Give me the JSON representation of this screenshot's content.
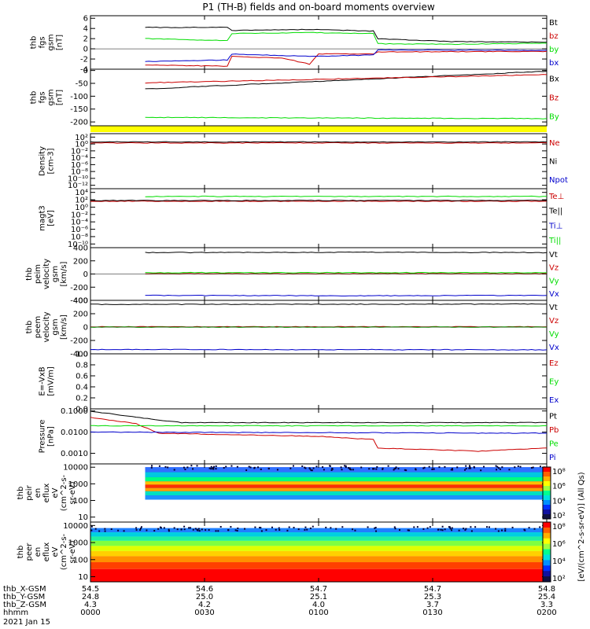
{
  "title": "P1  (TH-B) fields and on-board moments overview",
  "colors": {
    "black": "#000000",
    "red": "#cc0000",
    "green": "#00dd00",
    "blue": "#0000cc",
    "yellow": "#ffff00"
  },
  "chart_data": [
    {
      "type": "line",
      "id": "fgs_gsm",
      "ylabel": [
        "thb",
        "fgs",
        "gsm",
        "[nT]"
      ],
      "ylim": [
        -4,
        6.5
      ],
      "yticks": [
        -4,
        -2,
        0,
        2,
        4,
        6
      ],
      "series": [
        {
          "name": "Bt",
          "color": "black",
          "segments": [
            [
              0.12,
              4.2
            ],
            [
              0.3,
              4.2
            ],
            [
              0.31,
              3.6
            ],
            [
              0.48,
              3.8
            ],
            [
              0.62,
              3.5
            ],
            [
              0.63,
              2.0
            ],
            [
              0.8,
              1.4
            ],
            [
              1.0,
              1.3
            ]
          ]
        },
        {
          "name": "bz",
          "color": "red",
          "segments": [
            [
              0.12,
              -3.2
            ],
            [
              0.3,
              -3.4
            ],
            [
              0.31,
              -1.5
            ],
            [
              0.42,
              -1.8
            ],
            [
              0.48,
              -3.0
            ],
            [
              0.5,
              -1.0
            ],
            [
              0.62,
              -1.0
            ],
            [
              0.63,
              -0.6
            ],
            [
              1.0,
              -0.5
            ]
          ]
        },
        {
          "name": "by",
          "color": "green",
          "segments": [
            [
              0.12,
              2.0
            ],
            [
              0.3,
              1.6
            ],
            [
              0.31,
              3.0
            ],
            [
              0.48,
              3.2
            ],
            [
              0.62,
              3.0
            ],
            [
              0.63,
              1.0
            ],
            [
              0.8,
              0.9
            ],
            [
              1.0,
              1.1
            ]
          ]
        },
        {
          "name": "bx",
          "color": "blue",
          "segments": [
            [
              0.12,
              -2.5
            ],
            [
              0.3,
              -2.2
            ],
            [
              0.31,
              -1.0
            ],
            [
              0.48,
              -1.5
            ],
            [
              0.62,
              -1.2
            ],
            [
              0.63,
              -0.2
            ],
            [
              1.0,
              -0.3
            ]
          ]
        }
      ]
    },
    {
      "type": "line",
      "id": "fgs_gsm_2",
      "ylabel": [
        "thb",
        "fgs",
        "gsm",
        "[nT]"
      ],
      "ylim": [
        -215,
        5
      ],
      "yticks": [
        -200,
        -150,
        -100,
        -50,
        0
      ],
      "series": [
        {
          "name": "Bx",
          "color": "black",
          "segments": [
            [
              0.12,
              -72
            ],
            [
              1.0,
              -3
            ]
          ]
        },
        {
          "name": "Bz",
          "color": "red",
          "segments": [
            [
              0.12,
              -48
            ],
            [
              1.0,
              -16
            ]
          ]
        },
        {
          "name": "By",
          "color": "green",
          "segments": [
            [
              0.12,
              -182
            ],
            [
              0.6,
              -185
            ],
            [
              1.0,
              -187
            ]
          ]
        }
      ]
    },
    {
      "type": "line",
      "id": "density",
      "ylabel": [
        "Density",
        "[cm-3]"
      ],
      "ylim": [
        -13,
        3
      ],
      "log": true,
      "ytick_labels": [
        {
          "v": 2,
          "t": "10²"
        },
        {
          "v": 0,
          "t": "10⁰"
        },
        {
          "v": -2,
          "t": "10⁻²"
        },
        {
          "v": -4,
          "t": "10⁻⁴"
        },
        {
          "v": -6,
          "t": "10⁻⁶"
        },
        {
          "v": -8,
          "t": "10⁻⁸"
        },
        {
          "v": -10,
          "t": "10⁻¹⁰"
        },
        {
          "v": -12,
          "t": "10⁻¹²"
        }
      ],
      "series": [
        {
          "name": "Ne",
          "color": "red",
          "segments": [
            [
              0.0,
              0.3
            ],
            [
              1.0,
              0.3
            ]
          ]
        },
        {
          "name": "Ni",
          "color": "black",
          "segments": [
            [
              0.0,
              0.6
            ],
            [
              1.0,
              0.6
            ]
          ]
        },
        {
          "name": "Npot",
          "color": "blue",
          "segments": []
        }
      ]
    },
    {
      "type": "line",
      "id": "magt3",
      "ylabel": [
        "magt3",
        "[eV]"
      ],
      "ylim": [
        -11,
        5
      ],
      "log": true,
      "ytick_labels": [
        {
          "v": 4,
          "t": "10⁴"
        },
        {
          "v": 2,
          "t": "10²"
        },
        {
          "v": 0,
          "t": "10⁰"
        },
        {
          "v": -2,
          "t": "10⁻²"
        },
        {
          "v": -4,
          "t": "10⁻⁴"
        },
        {
          "v": -6,
          "t": "10⁻⁶"
        },
        {
          "v": -8,
          "t": "10⁻⁸"
        },
        {
          "v": -10,
          "t": "10⁻¹⁰"
        }
      ],
      "series": [
        {
          "name": "Te⊥",
          "color": "red",
          "segments": [
            [
              0.0,
              1.6
            ],
            [
              1.0,
              1.6
            ]
          ]
        },
        {
          "name": "Te||",
          "color": "black",
          "segments": [
            [
              0.0,
              1.8
            ],
            [
              1.0,
              1.8
            ]
          ]
        },
        {
          "name": "Ti⊥",
          "color": "blue",
          "segments": []
        },
        {
          "name": "Ti||",
          "color": "green",
          "segments": [
            [
              0.12,
              2.9
            ],
            [
              1.0,
              2.9
            ]
          ]
        }
      ]
    },
    {
      "type": "line",
      "id": "peim",
      "ylabel": [
        "thb",
        "peim",
        "velocity",
        "gsm",
        "[km/s]"
      ],
      "ylim": [
        -400,
        400
      ],
      "yticks": [
        -400,
        -200,
        0,
        200,
        400
      ],
      "series": [
        {
          "name": "Vt",
          "color": "black",
          "segments": [
            [
              0.12,
              325
            ],
            [
              0.6,
              330
            ],
            [
              1.0,
              325
            ]
          ]
        },
        {
          "name": "Vz",
          "color": "red",
          "segments": [
            [
              0.12,
              5
            ],
            [
              1.0,
              5
            ]
          ]
        },
        {
          "name": "Vy",
          "color": "green",
          "segments": [
            [
              0.12,
              20
            ],
            [
              1.0,
              20
            ]
          ]
        },
        {
          "name": "Vx",
          "color": "blue",
          "segments": [
            [
              0.12,
              -325
            ],
            [
              0.6,
              -330
            ],
            [
              1.0,
              -325
            ]
          ]
        }
      ]
    },
    {
      "type": "line",
      "id": "peem",
      "ylabel": [
        "thb",
        "peem",
        "velocity",
        "gsm",
        "[km/s]"
      ],
      "ylim": [
        -400,
        400
      ],
      "yticks": [
        -400,
        -200,
        0,
        200,
        400
      ],
      "series": [
        {
          "name": "Vt",
          "color": "black",
          "segments": [
            [
              0.0,
              340
            ],
            [
              0.2,
              340
            ],
            [
              1.0,
              345
            ]
          ]
        },
        {
          "name": "Vz",
          "color": "red",
          "segments": [
            [
              0.0,
              5
            ],
            [
              1.0,
              5
            ]
          ]
        },
        {
          "name": "Vy",
          "color": "green",
          "segments": [
            [
              0.0,
              0
            ],
            [
              1.0,
              0
            ]
          ]
        },
        {
          "name": "Vx",
          "color": "blue",
          "segments": [
            [
              0.0,
              -335
            ],
            [
              1.0,
              -340
            ]
          ]
        }
      ]
    },
    {
      "type": "line",
      "id": "efield",
      "ylabel": [
        "E=-VxB",
        "[mV/m]"
      ],
      "ylim": [
        0,
        1
      ],
      "yticks": [
        0,
        0.2,
        0.4,
        0.6,
        0.8,
        1.0
      ],
      "ytick_text": [
        "0.0",
        "0.2",
        "0.4",
        "0.6",
        "0.8",
        "1.0"
      ],
      "series": [
        {
          "name": "Ez",
          "color": "red",
          "segments": []
        },
        {
          "name": "Ey",
          "color": "green",
          "segments": []
        },
        {
          "name": "Ex",
          "color": "blue",
          "segments": []
        }
      ]
    },
    {
      "type": "line",
      "id": "pressure",
      "ylabel": [
        "Pressure",
        "[nPa]"
      ],
      "ylim": [
        -3.5,
        -0.9
      ],
      "log": true,
      "ytick_labels": [
        {
          "v": -1,
          "t": "0.1000"
        },
        {
          "v": -2,
          "t": "0.0100"
        },
        {
          "v": -3,
          "t": "0.0010"
        }
      ],
      "series": [
        {
          "name": "Pt",
          "color": "black",
          "segments": [
            [
              0.0,
              -1.0
            ],
            [
              0.1,
              -1.3
            ],
            [
              0.2,
              -1.55
            ],
            [
              1.0,
              -1.55
            ]
          ]
        },
        {
          "name": "Pb",
          "color": "red",
          "segments": [
            [
              0.0,
              -1.3
            ],
            [
              0.1,
              -1.6
            ],
            [
              0.15,
              -2.05
            ],
            [
              0.5,
              -2.2
            ],
            [
              0.62,
              -2.35
            ],
            [
              0.63,
              -2.75
            ],
            [
              0.85,
              -2.9
            ],
            [
              1.0,
              -2.75
            ]
          ]
        },
        {
          "name": "Pe",
          "color": "green",
          "segments": [
            [
              0.0,
              -1.7
            ],
            [
              1.0,
              -1.7
            ]
          ]
        },
        {
          "name": "Pi",
          "color": "blue",
          "segments": [
            [
              0.0,
              -2.0
            ],
            [
              1.0,
              -2.05
            ]
          ]
        }
      ]
    },
    {
      "type": "heatmap",
      "id": "peir",
      "ylabel": [
        "thb",
        "peir",
        "en",
        "eflux",
        "eV",
        "(cm^2-s-",
        "sr-eV)"
      ],
      "log": true,
      "ylim": [
        0.7,
        4.2
      ],
      "ytick_labels": [
        {
          "v": 4,
          "t": "10000"
        },
        {
          "v": 3,
          "t": "1000"
        },
        {
          "v": 2,
          "t": "100"
        },
        {
          "v": 1,
          "t": "10"
        }
      ],
      "start": 0.12,
      "bands": [
        [
          3.7,
          4.0,
          "#3070ff"
        ],
        [
          3.4,
          3.7,
          "#00c8e0"
        ],
        [
          3.15,
          3.4,
          "#00ff80"
        ],
        [
          2.95,
          3.15,
          "#ffc000"
        ],
        [
          2.75,
          2.95,
          "#ff3000"
        ],
        [
          2.55,
          2.75,
          "#ffa000"
        ],
        [
          2.3,
          2.55,
          "#00e0c0"
        ],
        [
          2.05,
          2.3,
          "#2090ff"
        ]
      ]
    },
    {
      "type": "heatmap",
      "id": "peer",
      "ylabel": [
        "thb",
        "peer",
        "en",
        "eflux",
        "eV",
        "(cm^2-s-",
        "sr-eV)"
      ],
      "log": true,
      "ylim": [
        0.7,
        4.2
      ],
      "ytick_labels": [
        {
          "v": 4,
          "t": "10000"
        },
        {
          "v": 3,
          "t": "1000"
        },
        {
          "v": 2,
          "t": "100"
        },
        {
          "v": 1,
          "t": "10"
        }
      ],
      "start": 0.0,
      "bands": [
        [
          3.6,
          3.85,
          "#2080ff"
        ],
        [
          3.35,
          3.6,
          "#00d0e0"
        ],
        [
          3.1,
          3.35,
          "#20f0a0"
        ],
        [
          2.8,
          3.1,
          "#80ff40"
        ],
        [
          2.5,
          2.8,
          "#e0ff00"
        ],
        [
          2.2,
          2.5,
          "#ffd000"
        ],
        [
          1.85,
          2.2,
          "#ff9000"
        ],
        [
          1.45,
          1.85,
          "#ff4000"
        ],
        [
          0.7,
          1.45,
          "#ff0000"
        ]
      ]
    }
  ],
  "legends": [
    [
      {
        "t": "Bt",
        "c": "black"
      },
      {
        "t": "bz",
        "c": "red"
      },
      {
        "t": "by",
        "c": "green"
      },
      {
        "t": "bx",
        "c": "blue"
      }
    ],
    [
      {
        "t": "Bx",
        "c": "black"
      },
      {
        "t": "Bz",
        "c": "red"
      },
      {
        "t": "By",
        "c": "green"
      }
    ],
    [
      {
        "t": "Ne",
        "c": "red"
      },
      {
        "t": "Ni",
        "c": "black"
      },
      {
        "t": "Npot",
        "c": "blue"
      }
    ],
    [
      {
        "t": "Te⊥",
        "c": "red"
      },
      {
        "t": "Te||",
        "c": "black"
      },
      {
        "t": "Ti⊥",
        "c": "blue"
      },
      {
        "t": "Ti||",
        "c": "green"
      }
    ],
    [
      {
        "t": "Vt",
        "c": "black"
      },
      {
        "t": "Vz",
        "c": "red"
      },
      {
        "t": "Vy",
        "c": "green"
      },
      {
        "t": "Vx",
        "c": "blue"
      }
    ],
    [
      {
        "t": "Vt",
        "c": "black"
      },
      {
        "t": "Vz",
        "c": "red"
      },
      {
        "t": "Vy",
        "c": "green"
      },
      {
        "t": "Vx",
        "c": "blue"
      }
    ],
    [
      {
        "t": "Ez",
        "c": "red"
      },
      {
        "t": "Ey",
        "c": "green"
      },
      {
        "t": "Ex",
        "c": "blue"
      }
    ],
    [
      {
        "t": "Pt",
        "c": "black"
      },
      {
        "t": "Pb",
        "c": "red"
      },
      {
        "t": "Pe",
        "c": "green"
      },
      {
        "t": "Pi",
        "c": "blue"
      }
    ]
  ],
  "colorbar": {
    "labels": [
      "10⁸",
      "10⁶",
      "10⁴",
      "10²",
      "10⁸",
      "10⁶",
      "10⁴",
      "10²"
    ],
    "title": "[eV/(cm^2-s-sr-eV)] (All Qs)"
  },
  "ephemeris": {
    "rows": [
      {
        "name": "thb_X-GSM",
        "values": [
          "54.5",
          "54.6",
          "54.7",
          "54.7",
          "54.8"
        ]
      },
      {
        "name": "thb_Y-GSM",
        "values": [
          "24.8",
          "25.0",
          "25.1",
          "25.3",
          "25.4"
        ]
      },
      {
        "name": "thb_Z-GSM",
        "values": [
          "4.3",
          "4.2",
          "4.0",
          "3.7",
          "3.3"
        ]
      },
      {
        "name": "hhmm",
        "values": [
          "0000",
          "0030",
          "0100",
          "0130",
          "0200"
        ]
      }
    ],
    "date": "2021 Jan 15"
  }
}
